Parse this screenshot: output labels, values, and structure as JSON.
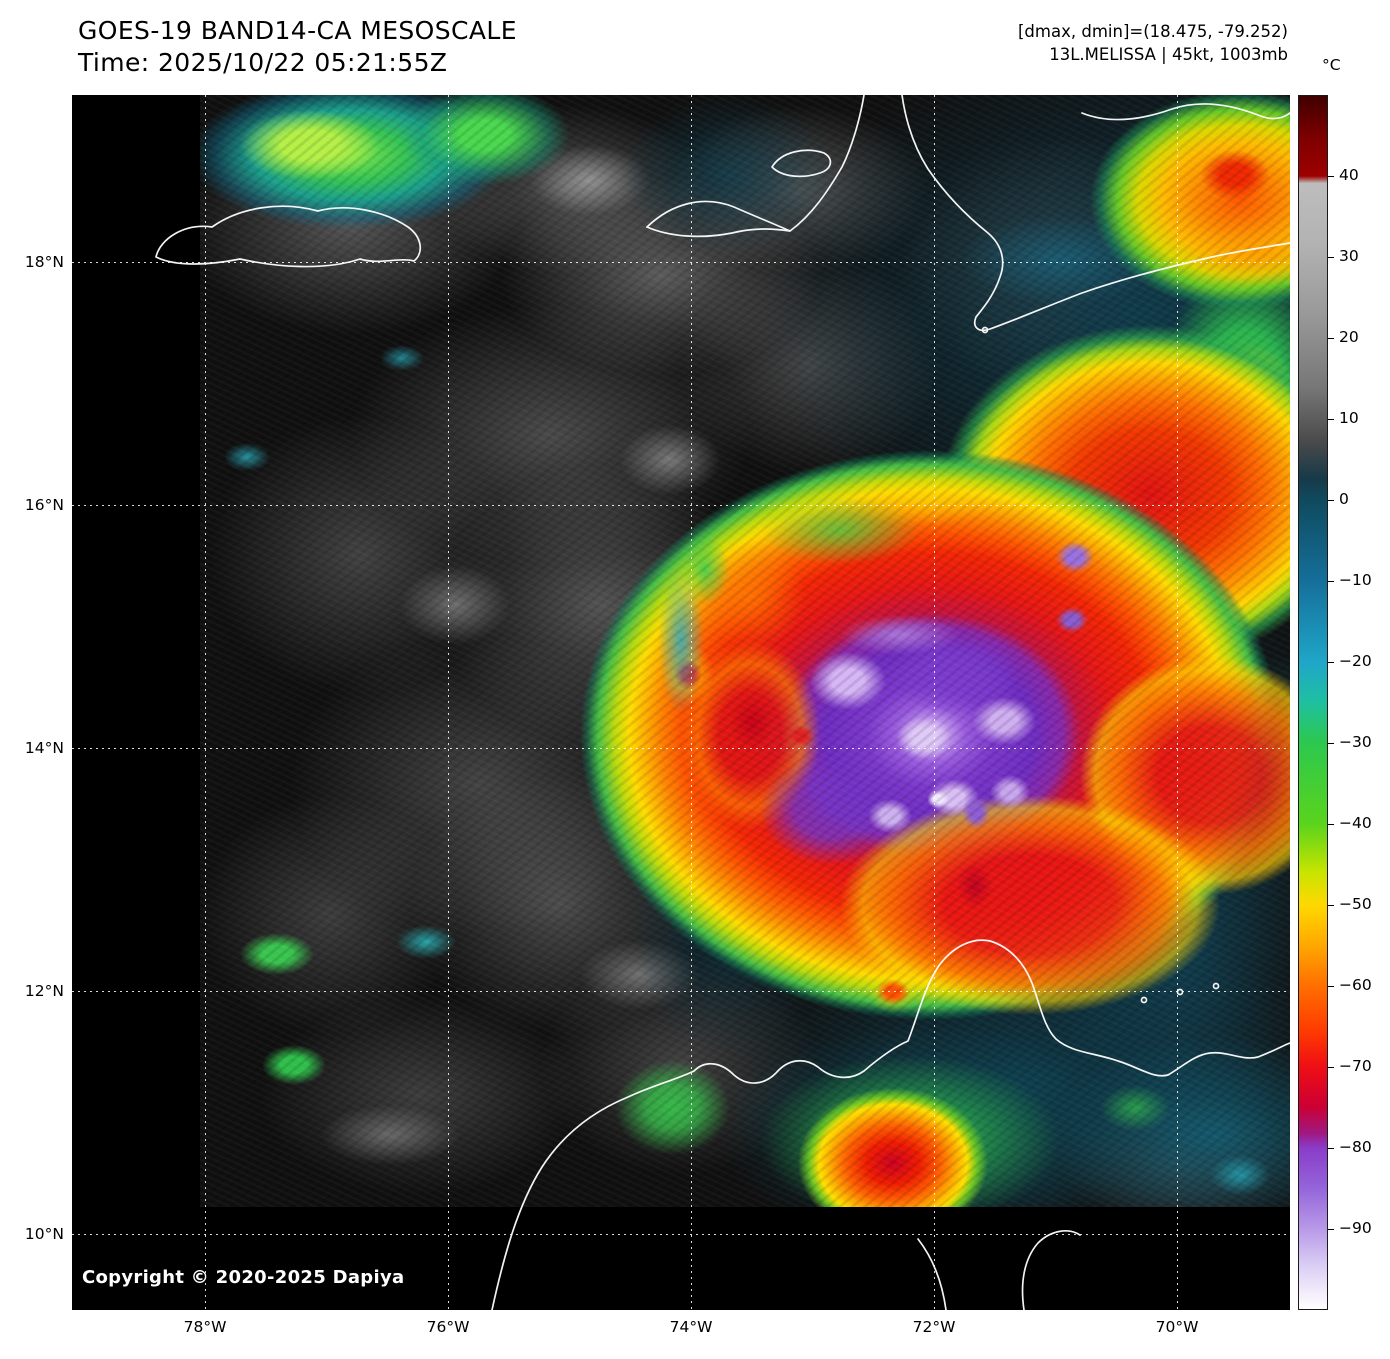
{
  "header": {
    "title_line1": "GOES-19 BAND14-CA MESOSCALE",
    "title_line2": "Time: 2025/10/22 05:21:55Z",
    "info_line1": "[dmax, dmin]=(18.475, -79.252)",
    "info_line2": "13L.MELISSA | 45kt, 1003mb"
  },
  "colorbar": {
    "unit_label": "°C",
    "tick_labels": [
      "40",
      "30",
      "20",
      "10",
      "0",
      "−10",
      "−20",
      "−30",
      "−40",
      "−50",
      "−60",
      "−70",
      "−80",
      "−90"
    ]
  },
  "axes": {
    "lat_labels": [
      "18°N",
      "16°N",
      "14°N",
      "12°N",
      "10°N"
    ],
    "lon_labels": [
      "78°W",
      "76°W",
      "74°W",
      "72°W",
      "70°W"
    ]
  },
  "map": {
    "copyright": "Copyright © 2020-2025 Dapiya"
  }
}
